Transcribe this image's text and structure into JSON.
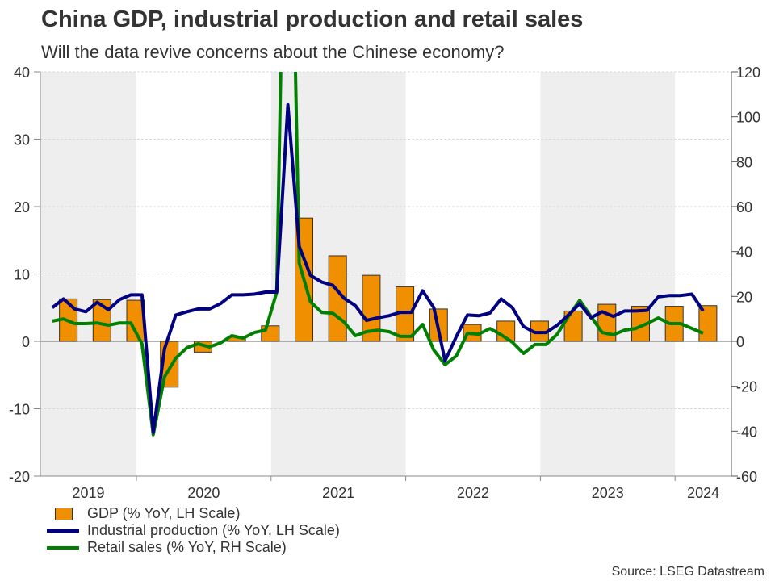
{
  "chart_data": {
    "type": "bar+line",
    "title": "China GDP, industrial production and retail sales",
    "subtitle": "Will the data revive concerns about the Chinese economy?",
    "source": "Source: LSEG Datastream",
    "left_axis": {
      "ylim": [
        -20,
        40
      ],
      "ticks": [
        40,
        30,
        20,
        10,
        0,
        -10,
        -20
      ],
      "tick_labels": [
        "40",
        "30",
        "20",
        "10",
        "0",
        "-10",
        "-20"
      ]
    },
    "right_axis": {
      "ylim": [
        -60,
        120
      ],
      "ticks": [
        120,
        100,
        80,
        60,
        40,
        20,
        0,
        -20,
        -40,
        -60
      ],
      "tick_labels": [
        "120",
        "100",
        "80",
        "60",
        "40",
        "20",
        "0",
        "-20",
        "-40",
        "-60"
      ]
    },
    "x_axis": {
      "years": [
        "2019",
        "2020",
        "2021",
        "2022",
        "2023",
        "2024"
      ],
      "shaded_years": [
        "2019",
        "2021",
        "2023"
      ]
    },
    "grid": true,
    "legend_placement": "bottom-left",
    "colors": {
      "gdp": "#f09000",
      "ip": "#000080",
      "retail": "#008000",
      "shade": "#eeeeee"
    },
    "gdp": {
      "name": "GDP (% YoY, LH Scale)",
      "axis": "left",
      "quarters": [
        "2019Q2",
        "2019Q3",
        "2019Q4",
        "2020Q1",
        "2020Q2",
        "2020Q3",
        "2020Q4",
        "2021Q1",
        "2021Q2",
        "2021Q3",
        "2021Q4",
        "2022Q1",
        "2022Q2",
        "2022Q3",
        "2022Q4",
        "2023Q1",
        "2023Q2",
        "2023Q3",
        "2023Q4",
        "2024Q1"
      ],
      "values": [
        6.3,
        6.2,
        6.1,
        -6.8,
        -1.6,
        0.7,
        2.3,
        18.3,
        12.7,
        9.8,
        8.1,
        4.8,
        2.5,
        3.0,
        3.0,
        4.5,
        5.5,
        5.2,
        5.2,
        5.3
      ]
    },
    "ip": {
      "name": "Industrial production (% YoY, LH Scale)",
      "axis": "left",
      "start_month": "2019-05",
      "values": [
        5.0,
        6.3,
        4.8,
        4.4,
        5.8,
        4.7,
        6.2,
        6.9,
        6.9,
        -13.5,
        -1.1,
        3.9,
        4.4,
        4.8,
        4.8,
        5.6,
        6.9,
        6.9,
        7.0,
        7.3,
        7.3,
        35.1,
        14.1,
        9.8,
        8.8,
        8.3,
        6.4,
        5.3,
        3.1,
        3.5,
        3.8,
        4.3,
        4.3,
        7.5,
        5.0,
        -2.9,
        0.7,
        3.9,
        3.8,
        4.2,
        6.3,
        5.0,
        2.2,
        1.3,
        1.3,
        2.4,
        3.9,
        5.6,
        3.5,
        4.4,
        3.7,
        4.5,
        4.5,
        4.6,
        6.6,
        6.8,
        6.8,
        7.0,
        4.5
      ]
    },
    "retail": {
      "name": "Retail sales (% YoY, RH Scale)",
      "axis": "right",
      "start_month": "2019-05",
      "values": [
        9.0,
        10.0,
        7.9,
        7.9,
        8.2,
        7.2,
        8.2,
        8.2,
        -1.1,
        -41.6,
        -15.8,
        -7.5,
        -2.8,
        -1.1,
        -2.5,
        -0.7,
        2.5,
        1.4,
        3.9,
        5.0,
        21.9,
        295,
        34.8,
        17.6,
        12.9,
        12.5,
        8.6,
        2.5,
        4.3,
        5.0,
        4.3,
        2.2,
        2.2,
        7.5,
        -3.9,
        -10.4,
        -6.5,
        3.6,
        3.2,
        5.7,
        2.9,
        -0.4,
        -5.4,
        -1.4,
        -1.4,
        3.2,
        11.1,
        18.3,
        11.1,
        3.9,
        2.9,
        5.0,
        5.7,
        7.9,
        10.4,
        7.9,
        7.9,
        5.7,
        3.6
      ]
    }
  }
}
